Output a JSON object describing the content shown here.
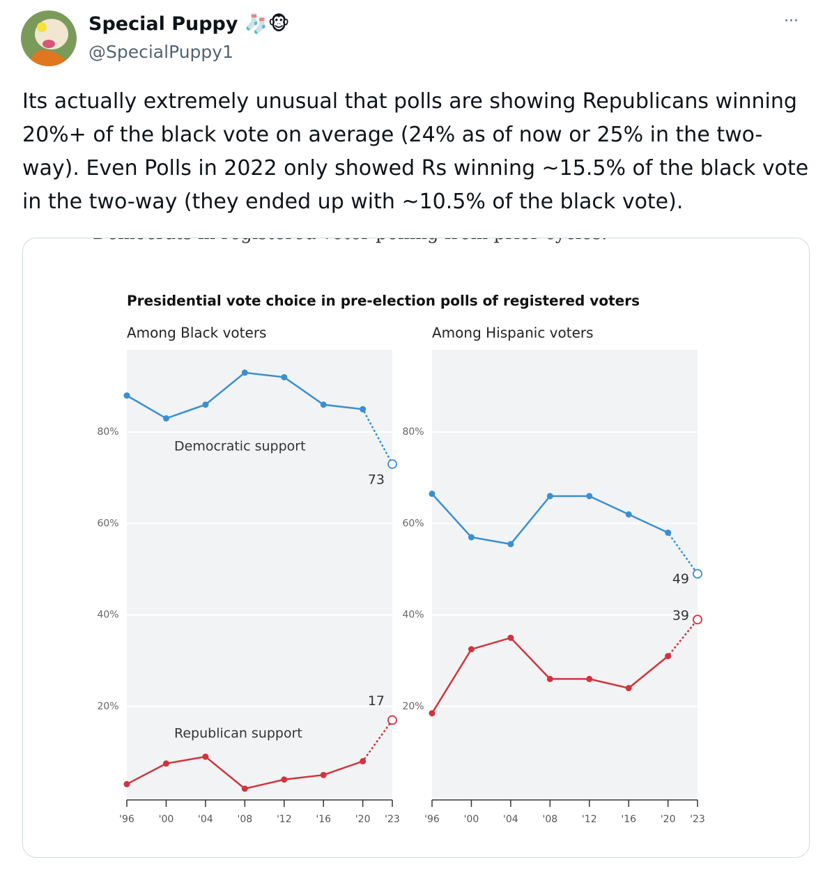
{
  "tweet": {
    "name": "Special Puppy",
    "emoji": "🧦🐵",
    "handle": "@SpecialPuppy1",
    "more": "···",
    "text": "Its actually extremely unusual that polls are showing Republicans winning 20%+ of the black vote on average (24% as of now or 25% in the two-way). Even Polls in 2022 only showed Rs winning ~15.5% of the black vote in the two-way (they ended up with ~10.5% of the black vote)."
  },
  "figure": {
    "caption_fragment": "Democrats in registered voter polling from prior cycles.",
    "title": "Presidential vote choice in pre-election polls of registered voters"
  },
  "chart_data": [
    {
      "type": "line",
      "subtitle": "Among Black voters",
      "x": [
        1996,
        2000,
        2004,
        2008,
        2012,
        2016,
        2020,
        2023
      ],
      "xlim": [
        1996,
        2023
      ],
      "xticks": [
        {
          "value": 1996,
          "label": "'96"
        },
        {
          "value": 2000,
          "label": "'00"
        },
        {
          "value": 2004,
          "label": "'04"
        },
        {
          "value": 2008,
          "label": "'08"
        },
        {
          "value": 2012,
          "label": "'12"
        },
        {
          "value": 2016,
          "label": "'16"
        },
        {
          "value": 2020,
          "label": "'20"
        },
        {
          "value": 2023,
          "label": "'23"
        }
      ],
      "ylim": [
        0,
        98
      ],
      "yticks": [
        {
          "value": 20,
          "label": "20%"
        },
        {
          "value": 40,
          "label": "40%"
        },
        {
          "value": 60,
          "label": "60%"
        },
        {
          "value": 80,
          "label": "80%"
        }
      ],
      "grid": true,
      "series": [
        {
          "name": "Democratic support",
          "color": "#3a8fd0",
          "values": [
            88,
            83,
            86,
            93,
            92,
            86,
            85,
            73
          ]
        },
        {
          "name": "Republican support",
          "color": "#d0343e",
          "values": [
            3,
            7.5,
            9,
            2,
            4,
            5,
            8,
            17
          ]
        }
      ]
    },
    {
      "type": "line",
      "subtitle": "Among Hispanic voters",
      "x": [
        1996,
        2000,
        2004,
        2008,
        2012,
        2016,
        2020,
        2023
      ],
      "xlim": [
        1996,
        2023
      ],
      "xticks": [
        {
          "value": 1996,
          "label": "'96"
        },
        {
          "value": 2000,
          "label": "'00"
        },
        {
          "value": 2004,
          "label": "'04"
        },
        {
          "value": 2008,
          "label": "'08"
        },
        {
          "value": 2012,
          "label": "'12"
        },
        {
          "value": 2016,
          "label": "'16"
        },
        {
          "value": 2020,
          "label": "'20"
        },
        {
          "value": 2023,
          "label": "'23"
        }
      ],
      "ylim": [
        0,
        98
      ],
      "yticks": [
        {
          "value": 20,
          "label": "20%"
        },
        {
          "value": 40,
          "label": "40%"
        },
        {
          "value": 60,
          "label": "60%"
        },
        {
          "value": 80,
          "label": "80%"
        }
      ],
      "grid": true,
      "series": [
        {
          "color": "#3a8fd0",
          "values": [
            66.5,
            57,
            55.5,
            66,
            66,
            62,
            58,
            49
          ]
        },
        {
          "color": "#d0343e",
          "values": [
            18.5,
            32.5,
            35,
            26,
            26,
            24,
            31,
            39
          ]
        }
      ]
    }
  ]
}
